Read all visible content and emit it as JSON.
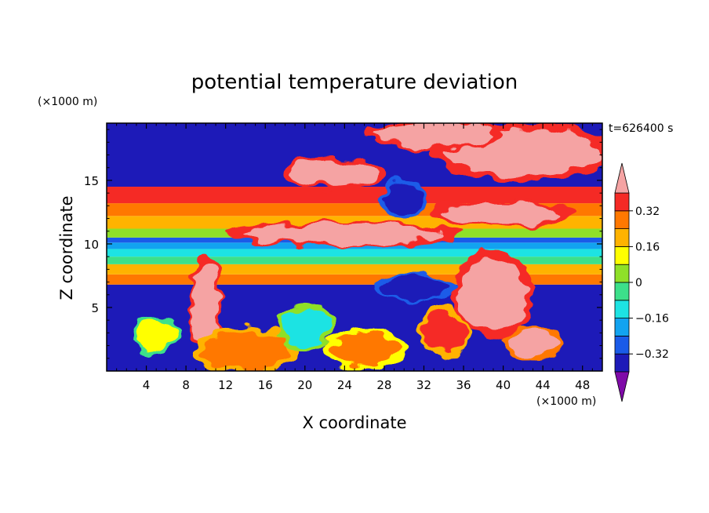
{
  "chart_data": {
    "type": "heatmap",
    "title": "potential temperature deviation",
    "xlabel": "X coordinate",
    "ylabel": "Z coordinate",
    "x_unit": "(×1000 m)",
    "y_unit": "(×1000 m)",
    "time_label": "t=626400 s",
    "xlim": [
      0,
      50
    ],
    "ylim": [
      0,
      19.5
    ],
    "x_ticks": [
      4,
      8,
      12,
      16,
      20,
      24,
      28,
      32,
      36,
      40,
      44,
      48
    ],
    "y_ticks": [
      5,
      10,
      15
    ],
    "colorbar": {
      "levels": [
        -0.4,
        -0.32,
        -0.24,
        -0.16,
        -0.08,
        0,
        0.08,
        0.16,
        0.24,
        0.32,
        0.4
      ],
      "colors": [
        "#7f0aa8",
        "#1d1ab8",
        "#1a5be8",
        "#12a3f0",
        "#1de3e3",
        "#3ce08a",
        "#8fe028",
        "#ffff00",
        "#ffb300",
        "#ff7800",
        "#f52a25",
        "#f5a3a3"
      ],
      "tick_labels": [
        "-0.32",
        "-0.16",
        "0",
        "0.16",
        "0.32"
      ],
      "tick_values": [
        -0.32,
        -0.16,
        0,
        0.16,
        0.32
      ],
      "extend": "both"
    },
    "bands": [
      {
        "z0": 0.0,
        "z1": 6.8,
        "v": -0.36
      },
      {
        "z0": 6.8,
        "z1": 7.6,
        "v": 0.3
      },
      {
        "z0": 7.6,
        "z1": 8.4,
        "v": 0.2
      },
      {
        "z0": 8.4,
        "z1": 9.0,
        "v": -0.02
      },
      {
        "z0": 9.0,
        "z1": 9.6,
        "v": -0.12
      },
      {
        "z0": 9.6,
        "z1": 10.1,
        "v": -0.2
      },
      {
        "z0": 10.1,
        "z1": 10.5,
        "v": -0.3
      },
      {
        "z0": 10.5,
        "z1": 11.2,
        "v": 0.06
      },
      {
        "z0": 11.2,
        "z1": 12.2,
        "v": 0.2
      },
      {
        "z0": 12.2,
        "z1": 13.2,
        "v": 0.28
      },
      {
        "z0": 13.2,
        "z1": 14.5,
        "v": 0.37
      },
      {
        "z0": 14.5,
        "z1": 19.5,
        "v": -0.36
      }
    ],
    "features": [
      {
        "x": 24,
        "z": 10.8,
        "rx": 10.0,
        "rz": 0.8,
        "v": 0.46
      },
      {
        "x": 40,
        "z": 12.4,
        "rx": 6.0,
        "rz": 0.9,
        "v": 0.46
      },
      {
        "x": 42,
        "z": 17.2,
        "rx": 8.0,
        "rz": 1.8,
        "v": 0.46
      },
      {
        "x": 33,
        "z": 18.6,
        "rx": 6.0,
        "rz": 0.9,
        "v": 0.46
      },
      {
        "x": 23,
        "z": 15.6,
        "rx": 4.5,
        "rz": 1.0,
        "v": 0.46
      },
      {
        "x": 10,
        "z": 5.0,
        "rx": 1.4,
        "rz": 3.5,
        "v": 0.46
      },
      {
        "x": 39,
        "z": 6.0,
        "rx": 3.5,
        "rz": 2.8,
        "v": 0.46
      },
      {
        "x": 43,
        "z": 2.2,
        "rx": 2.6,
        "rz": 1.1,
        "v": 0.42
      },
      {
        "x": 30,
        "z": 13.5,
        "rx": 2.0,
        "rz": 1.2,
        "v": -0.36
      },
      {
        "x": 31,
        "z": 6.6,
        "rx": 3.5,
        "rz": 0.9,
        "v": -0.36
      },
      {
        "x": 14,
        "z": 1.6,
        "rx": 4.5,
        "rz": 1.5,
        "v": 0.3
      },
      {
        "x": 26,
        "z": 1.7,
        "rx": 3.5,
        "rz": 1.3,
        "v": 0.26
      },
      {
        "x": 34,
        "z": 3.0,
        "rx": 2.2,
        "rz": 1.6,
        "v": 0.34
      },
      {
        "x": 5,
        "z": 2.8,
        "rx": 2.0,
        "rz": 1.2,
        "v": 0.1
      },
      {
        "x": 20,
        "z": 3.5,
        "rx": 2.5,
        "rz": 1.4,
        "v": -0.1
      }
    ]
  }
}
